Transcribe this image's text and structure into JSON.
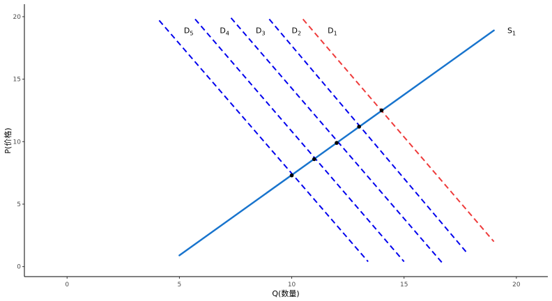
{
  "chart_data": {
    "type": "line",
    "title": "",
    "xlabel": "Q(数量)",
    "ylabel": "P(价格)",
    "xlim": [
      -1.9,
      21.4
    ],
    "ylim": [
      -0.8,
      21.0
    ],
    "x_ticks": [
      0,
      5,
      10,
      15,
      20
    ],
    "y_ticks": [
      0,
      5,
      10,
      15,
      20
    ],
    "grid": false,
    "legend": "none",
    "colors": {
      "supply": "#1874cd",
      "demand": "#0000ee",
      "demand_original": "#ee3b3b",
      "point": "#000000"
    },
    "supply": {
      "name": "S",
      "sub": "1",
      "x": [
        5,
        19
      ],
      "y": [
        0.9,
        18.9
      ],
      "label_at": [
        19.6,
        18.9
      ]
    },
    "demand": [
      {
        "name": "D",
        "sub": "1",
        "x": [
          10.5,
          19.0
        ],
        "y": [
          19.8,
          2.0
        ],
        "label_at": [
          11.6,
          18.9
        ],
        "style": "dashed",
        "color": "#ee3b3b"
      },
      {
        "name": "D",
        "sub": "2",
        "x": [
          9.0,
          17.8
        ],
        "y": [
          19.8,
          1.1
        ],
        "label_at": [
          10.0,
          18.9
        ],
        "style": "dashed",
        "color": "#0000ee"
      },
      {
        "name": "D",
        "sub": "3",
        "x": [
          7.3,
          16.7
        ],
        "y": [
          19.9,
          0.3
        ],
        "label_at": [
          8.4,
          18.9
        ],
        "style": "dashed",
        "color": "#0000ee"
      },
      {
        "name": "D",
        "sub": "4",
        "x": [
          5.7,
          15.0
        ],
        "y": [
          19.8,
          0.4
        ],
        "label_at": [
          6.8,
          18.9
        ],
        "style": "dashed",
        "color": "#0000ee"
      },
      {
        "name": "D",
        "sub": "5",
        "x": [
          4.1,
          13.4
        ],
        "y": [
          19.7,
          0.4
        ],
        "label_at": [
          5.2,
          18.9
        ],
        "style": "dashed",
        "color": "#0000ee"
      }
    ],
    "equilibrium_points": [
      {
        "x": 14.0,
        "y": 12.5
      },
      {
        "x": 13.0,
        "y": 11.2
      },
      {
        "x": 12.0,
        "y": 9.9
      },
      {
        "x": 11.0,
        "y": 8.6
      },
      {
        "x": 10.0,
        "y": 7.3
      }
    ]
  }
}
